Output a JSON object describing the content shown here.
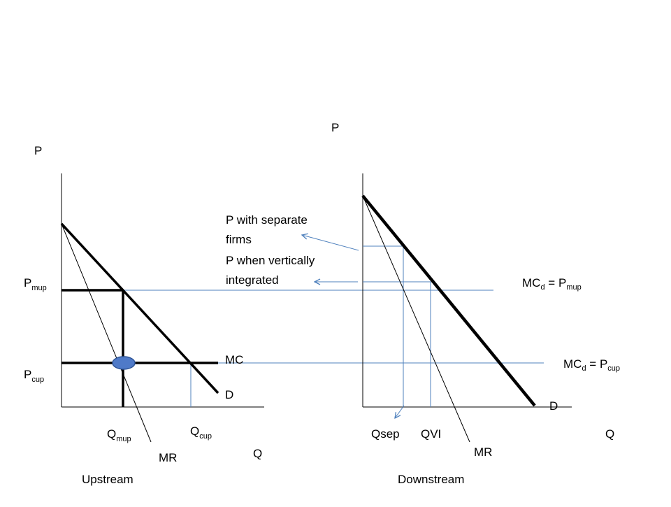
{
  "colors": {
    "curve": "#000000",
    "guide": "#4f81bd",
    "dot_fill": "#4f7ac8",
    "dot_stroke": "#2f5597"
  },
  "upstream": {
    "caption": "Upstream",
    "y_axis_label": "P",
    "x_axis_label": "Q",
    "price_high": {
      "main": "P",
      "sub": "mup"
    },
    "price_low": {
      "main": "P",
      "sub": "cup"
    },
    "qty_low": {
      "main": "Q",
      "sub": "mup"
    },
    "qty_high": {
      "main": "Q",
      "sub": "cup"
    },
    "mc_label": "MC",
    "demand_label": "D",
    "mr_label": "MR"
  },
  "downstream": {
    "caption": "Downstream",
    "y_axis_label": "P",
    "x_axis_label": "Q",
    "mc_high": {
      "pre": "MC",
      "sub1": "d",
      "mid": " = P",
      "sub2": "mup"
    },
    "mc_low": {
      "pre": "MC",
      "sub1": "d",
      "mid": " = P",
      "sub2": "cup"
    },
    "demand_label": "D",
    "mr_label": "MR",
    "qsep_label": "Qsep",
    "qvi_label": "QVI"
  },
  "annotations": {
    "separate_firms_line1": "P with separate",
    "separate_firms_line2": "firms",
    "vertical_line1": "P when vertically",
    "vertical_line2": "integrated"
  }
}
